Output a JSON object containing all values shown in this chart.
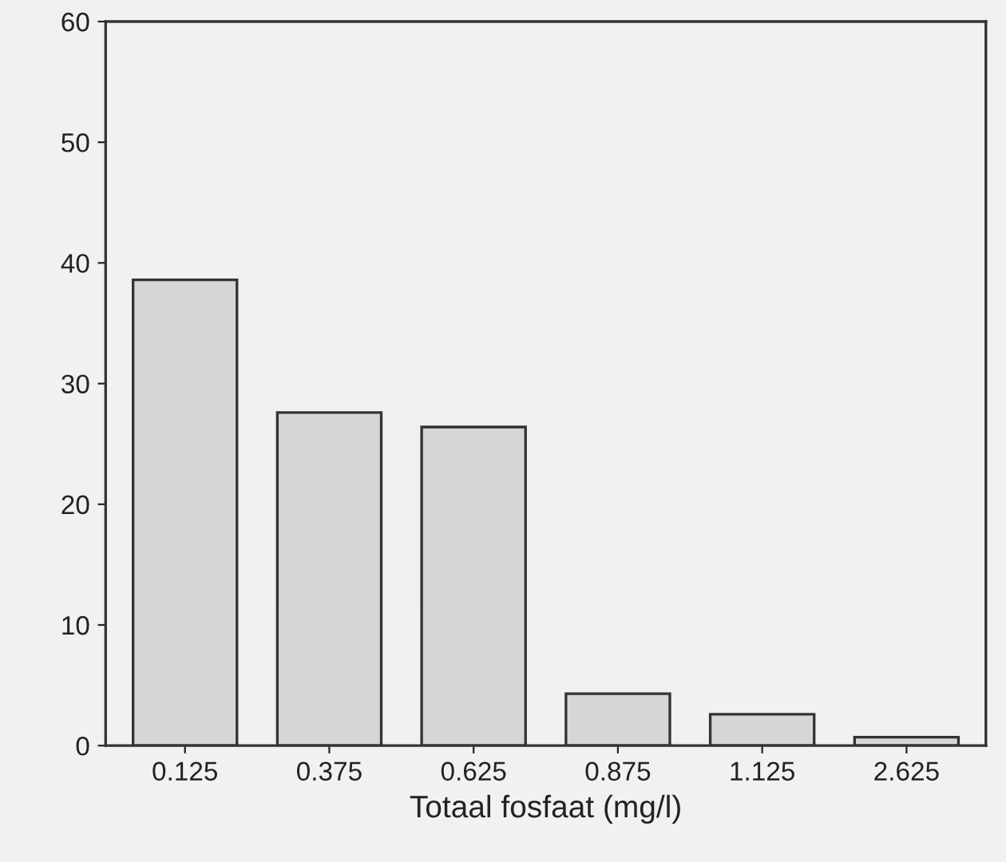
{
  "chart_data": {
    "type": "bar",
    "xlabel": "Totaal fosfaat (mg/l)",
    "categories": [
      "0.125",
      "0.375",
      "0.625",
      "0.875",
      "1.125",
      "2.625"
    ],
    "values": [
      38.6,
      27.6,
      26.4,
      4.3,
      2.6,
      0.7
    ],
    "color": "#d6d6d4",
    "ylim": [
      0,
      60
    ],
    "yticks": [
      0,
      10,
      20,
      30,
      40,
      50,
      60
    ],
    "grid": false
  }
}
